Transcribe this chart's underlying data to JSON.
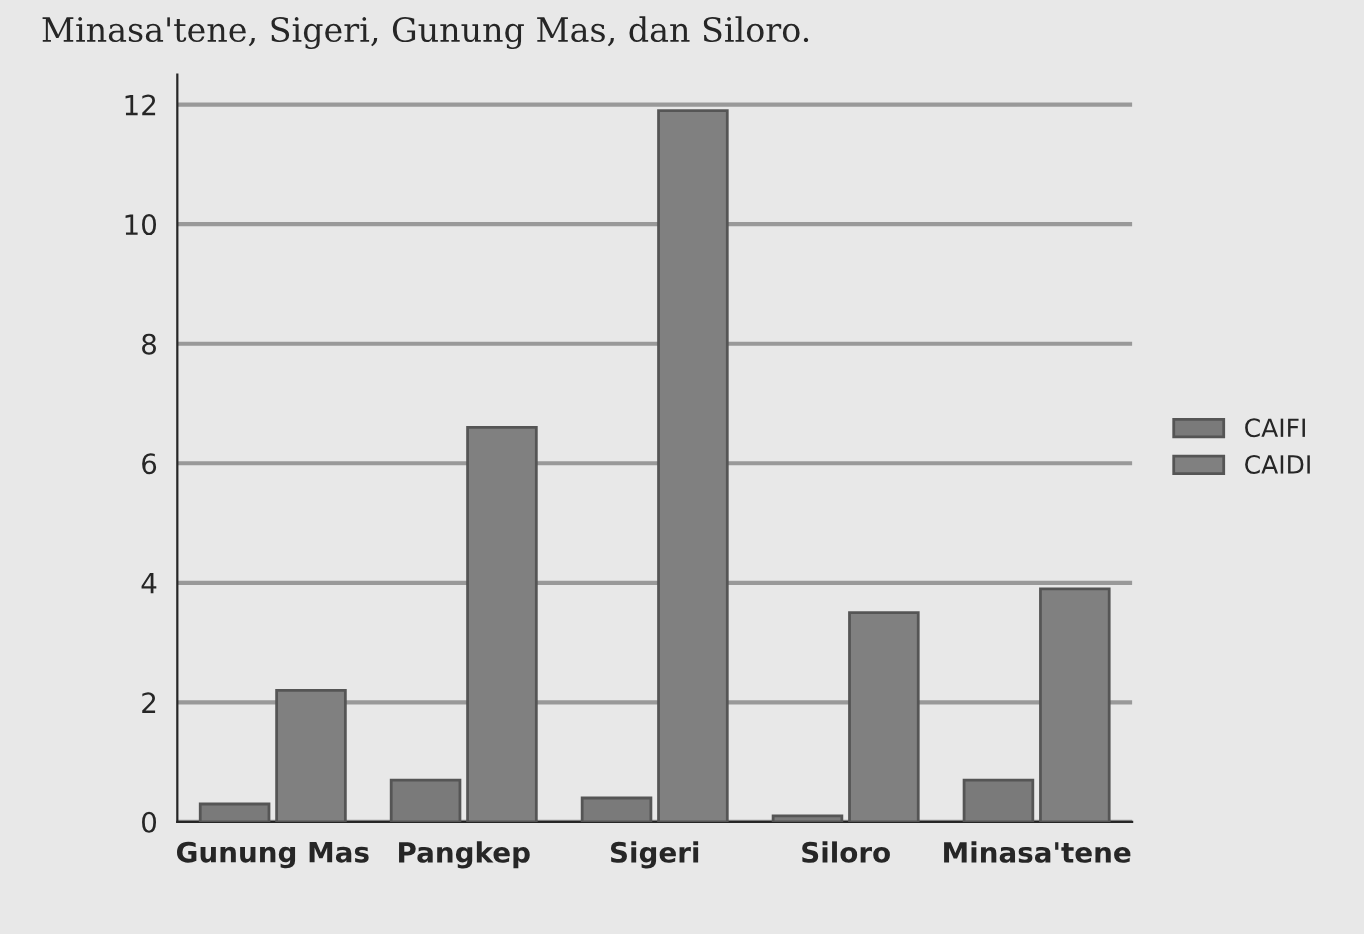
{
  "chart_data": {
    "type": "bar",
    "categories": [
      "Gunung Mas",
      "Pangkep",
      "Sigeri",
      "Siloro",
      "Minasa'tene"
    ],
    "series": [
      {
        "name": "CAIFI",
        "color": "#7a7a7a",
        "values": [
          0.3,
          0.7,
          0.4,
          0.1,
          0.7
        ]
      },
      {
        "name": "CAIDI",
        "color": "#808080",
        "values": [
          2.2,
          6.6,
          11.9,
          3.5,
          3.9
        ]
      }
    ],
    "ylim": [
      0,
      12.5
    ],
    "yticks": [
      0,
      2,
      4,
      6,
      8,
      10,
      12
    ],
    "grid": "y",
    "legend": "right",
    "annotations": [
      "Minasa'tene, Sigeri, Gunung Mas, dan Siloro."
    ]
  }
}
